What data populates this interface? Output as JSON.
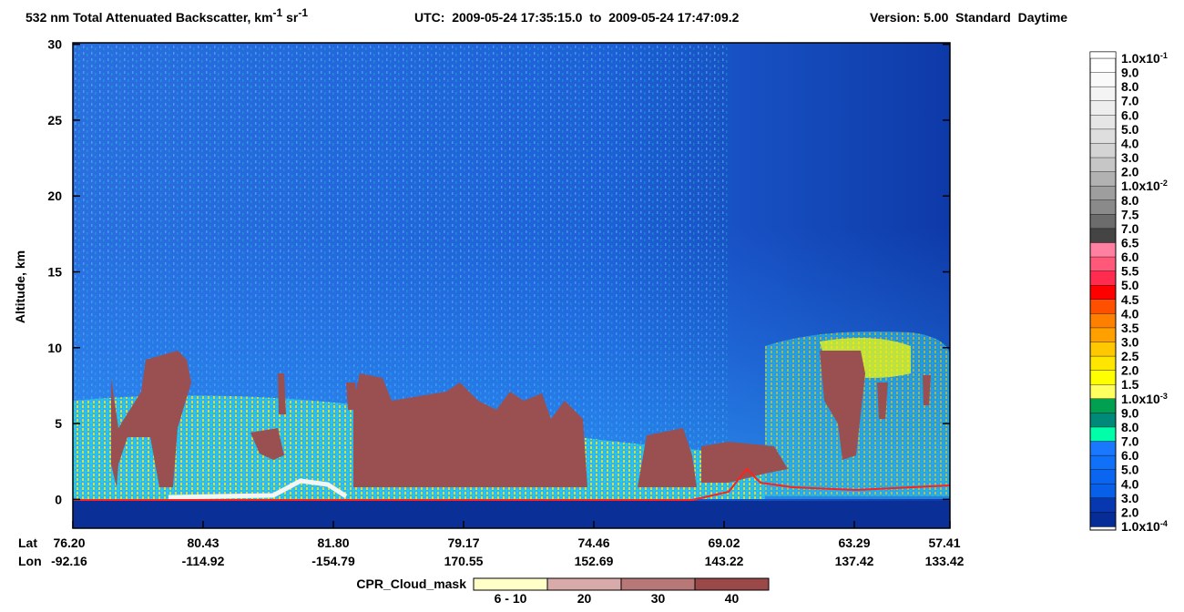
{
  "chart_data": {
    "type": "heatmap",
    "title": {
      "text": "532 nm Total Attenuated Backscatter, km",
      "exp1": "-1",
      "mid": " sr",
      "exp2": "-1"
    },
    "utc": "UTC:  2009-05-24 17:35:15.0  to  2009-05-24 17:47:09.2",
    "version": "Version: 5.00  Standard  Daytime",
    "ylabel": "Altitude, km",
    "ylim": [
      -1.9,
      30.1
    ],
    "yticks": [
      0,
      5,
      10,
      15,
      20,
      25,
      30
    ],
    "x_row_labels": [
      "Lat",
      "Lon"
    ],
    "lat": [
      "76.20",
      "80.43",
      "81.80",
      "79.17",
      "74.46",
      "69.02",
      "63.29",
      "57.41"
    ],
    "lon": [
      "-92.16",
      "-114.92",
      "-154.79",
      "170.55",
      "152.69",
      "143.22",
      "137.42",
      "133.42"
    ],
    "colorbar": {
      "labels": [
        {
          "base": "1.0x10",
          "exp": "-1"
        },
        "9.0",
        "8.0",
        "7.0",
        "6.0",
        "5.0",
        "4.0",
        "3.0",
        "2.0",
        {
          "base": "1.0x10",
          "exp": "-2"
        },
        "8.0",
        "7.5",
        "7.0",
        "6.5",
        "6.0",
        "5.5",
        "5.0",
        "4.5",
        "4.0",
        "3.5",
        "3.0",
        "2.5",
        "2.0",
        "1.5",
        {
          "base": "1.0x10",
          "exp": "-3"
        },
        "9.0",
        "8.0",
        "7.0",
        "6.0",
        "5.0",
        "4.0",
        "3.0",
        "2.0",
        {
          "base": "1.0x10",
          "exp": "-4"
        }
      ],
      "colors": [
        "#ffffff",
        "#fafafa",
        "#f4f4f4",
        "#eeeeee",
        "#e6e6e6",
        "#dedede",
        "#d4d4d4",
        "#c6c6c6",
        "#b2b2b2",
        "#9e9e9e",
        "#8a8a8a",
        "#6c6c6c",
        "#444444",
        "#ff80a0",
        "#ff5878",
        "#ff2c50",
        "#ff0000",
        "#ff5000",
        "#ff8000",
        "#ffa000",
        "#ffc800",
        "#ffe600",
        "#ffff00",
        "#ffff60",
        "#00a050",
        "#008878",
        "#00ffa8",
        "#1a78ff",
        "#1070f8",
        "#0a66f0",
        "#0860e8",
        "#0838b0",
        "#062c98"
      ]
    },
    "cloud_mask": {
      "title": "CPR_Cloud_mask",
      "labels": [
        "6 - 10",
        "20",
        "30",
        "40"
      ],
      "colors": [
        "#ffffc8",
        "#d8aaaa",
        "#b87878",
        "#9a4848"
      ]
    }
  }
}
